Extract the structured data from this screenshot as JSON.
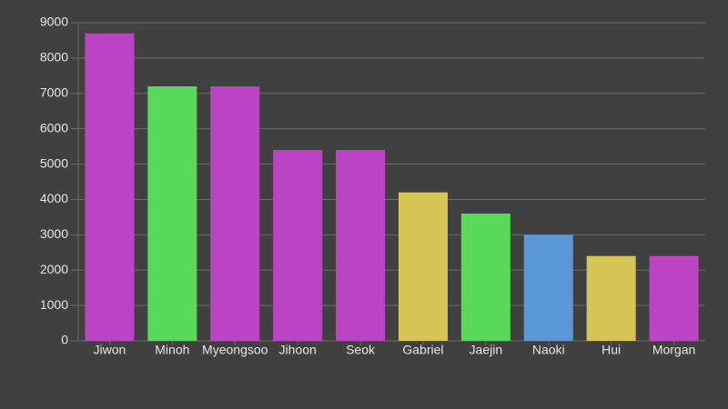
{
  "chart_data": {
    "type": "bar",
    "categories": [
      "Jiwon",
      "Minoh",
      "Myeongsoo",
      "Jihoon",
      "Seok",
      "Gabriel",
      "Jaejin",
      "Naoki",
      "Hui",
      "Morgan"
    ],
    "values": [
      8700,
      7200,
      7200,
      5400,
      5400,
      4200,
      3600,
      3000,
      2400,
      2400
    ],
    "colors": [
      "#bc44c4",
      "#58d95a",
      "#bc44c4",
      "#bc44c4",
      "#bc44c4",
      "#d6c555",
      "#58d95a",
      "#5a98d8",
      "#d6c555",
      "#bc44c4"
    ],
    "ylim": [
      0,
      9000
    ],
    "yticks": [
      0,
      1000,
      2000,
      3000,
      4000,
      5000,
      6000,
      7000,
      8000,
      9000
    ],
    "grid": true
  }
}
